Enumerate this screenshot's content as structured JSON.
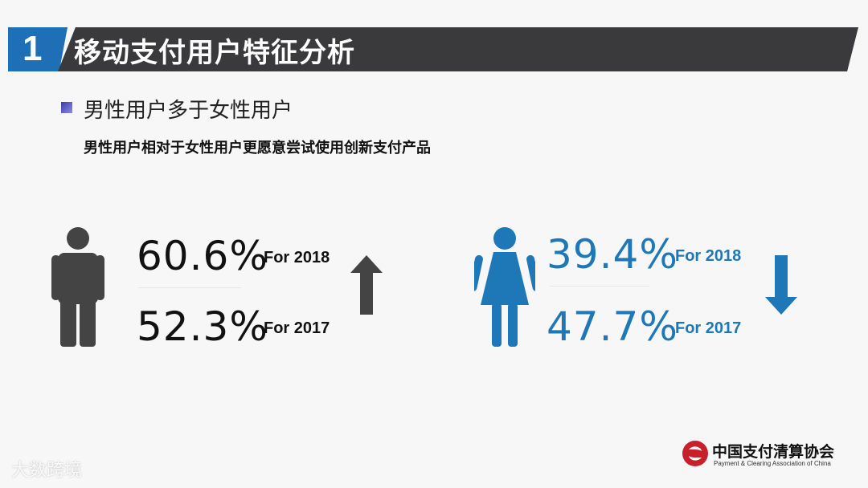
{
  "header": {
    "number": "1",
    "title": "移动支付用户特征分析"
  },
  "section": {
    "title": "男性用户多于女性用户",
    "description": "男性用户相对于女性用户更愿意尝试使用创新支付产品"
  },
  "male": {
    "icon": "male-person-icon",
    "color": "#444444",
    "stat_2018": "60.6%",
    "label_2018": "For 2018",
    "stat_2017": "52.3%",
    "label_2017": "For 2017",
    "trend_icon": "arrow-up-icon"
  },
  "female": {
    "icon": "female-person-icon",
    "color": "#1e78b8",
    "stat_2018": "39.4%",
    "label_2018": "For 2018",
    "stat_2017": "47.7%",
    "label_2017": "For 2017",
    "trend_icon": "arrow-down-icon"
  },
  "footer": {
    "logo_cn": "中国支付清算协会",
    "logo_en": "Payment & Clearing Association of China",
    "watermark": "大数跨境"
  },
  "colors": {
    "header_bg": "#3a3a3c",
    "accent_blue": "#1e6fb5"
  }
}
